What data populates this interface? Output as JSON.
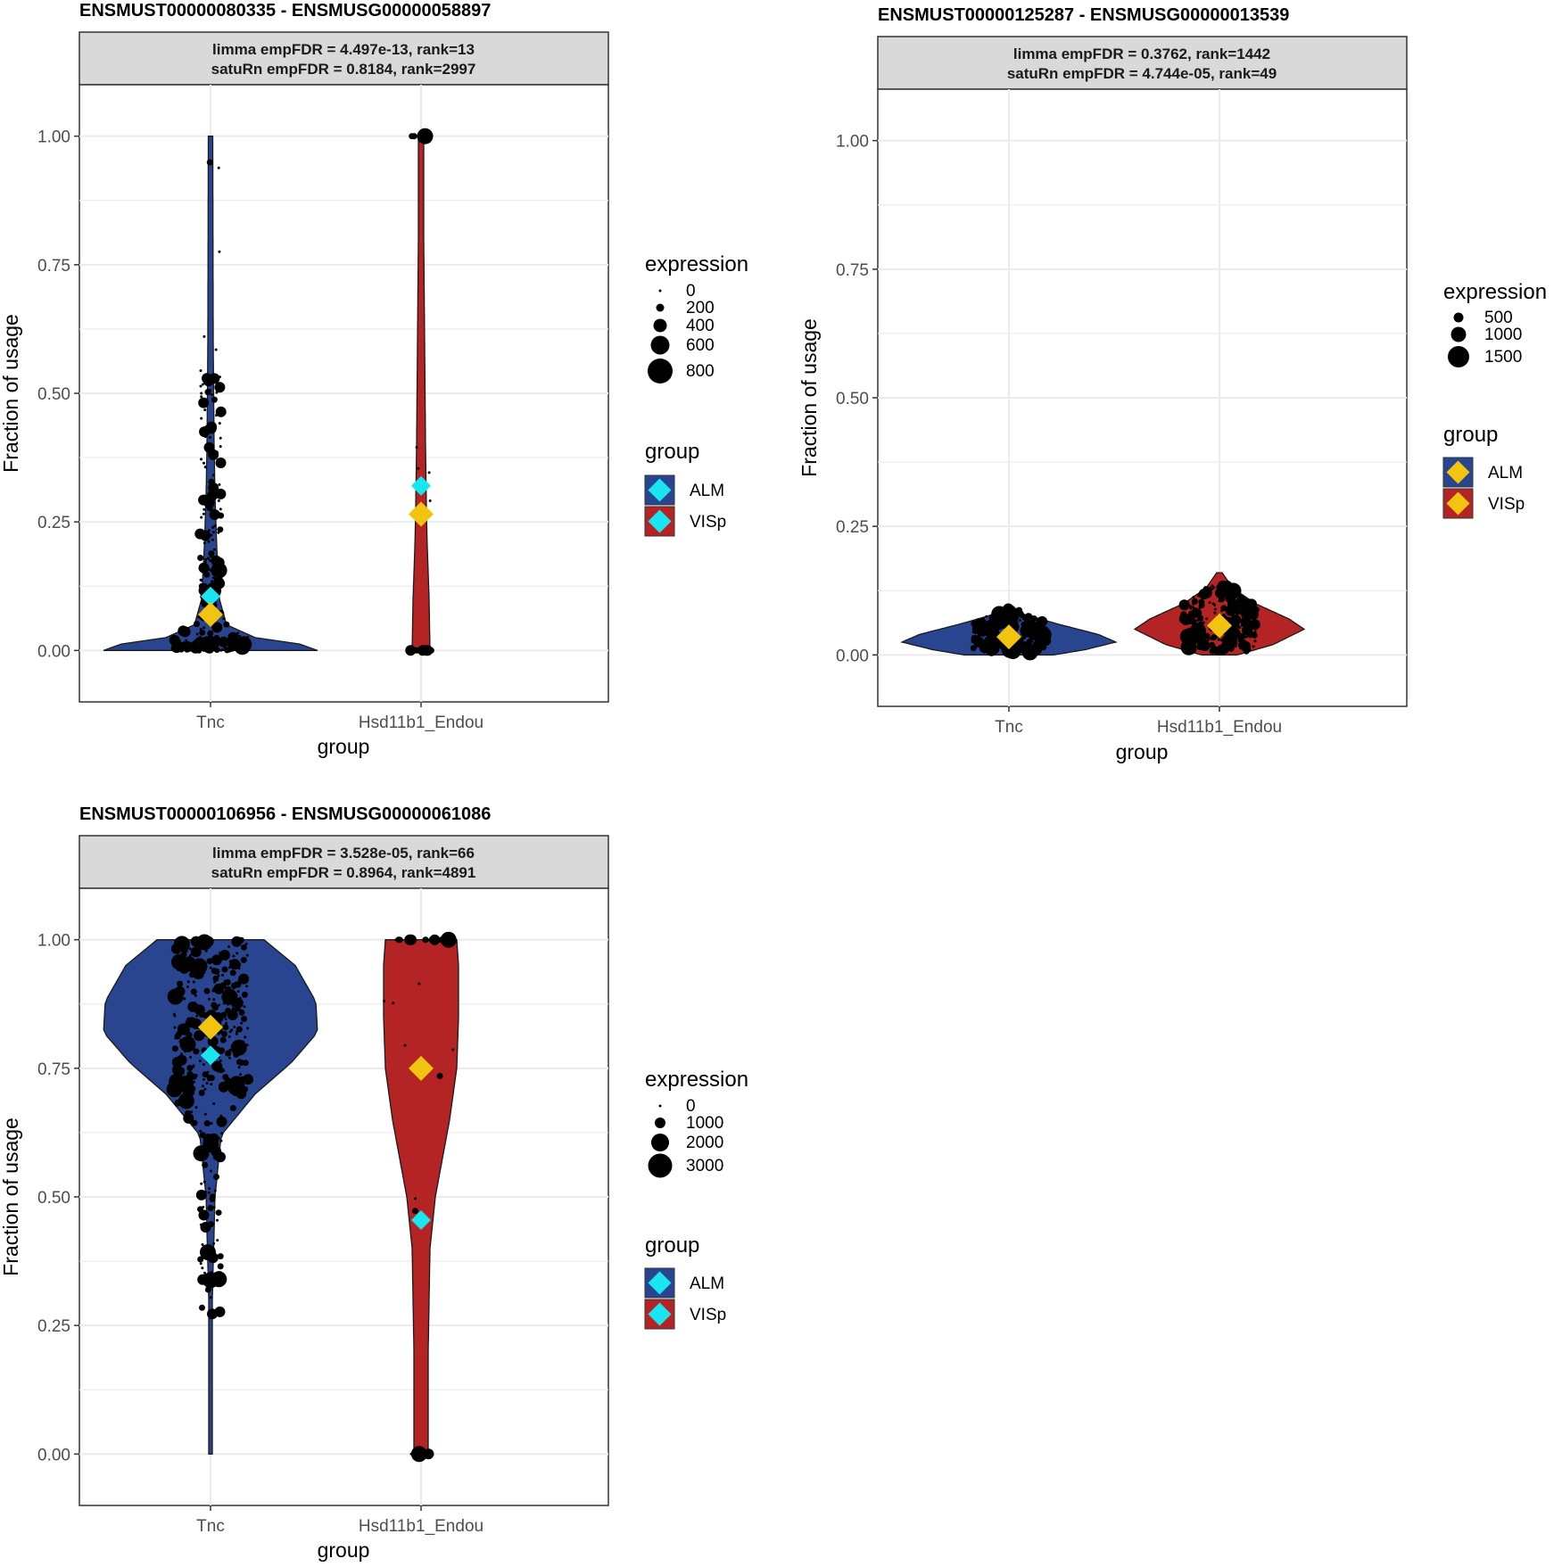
{
  "colors": {
    "ALM": "#2a4590",
    "VISp": "#b52425",
    "mean_ALM_marker": "#f2c40f",
    "mean_VISp_marker": "#19e6f0",
    "strip_bg": "#d9d9d9",
    "grid": "#ebebeb",
    "points": "#000000"
  },
  "chart_data": [
    {
      "type": "violin",
      "title": "ENSMUST00000080335  -  ENSMUSG00000058897",
      "strip": [
        "limma empFDR = 4.497e-13, rank=13",
        "satuRn empFDR = 0.8184, rank=2997"
      ],
      "xlabel": "group",
      "ylabel": "Fraction of usage",
      "categories": [
        "Tnc",
        "Hsd11b1_Endou"
      ],
      "ylim": [
        -0.1,
        1.1
      ],
      "yticks": [
        "0.00",
        "0.25",
        "0.50",
        "0.75",
        "1.00"
      ],
      "grid": true,
      "series": [
        {
          "name": "ALM",
          "category": "Tnc",
          "mean": 0.07,
          "cyan_marker": 0.105,
          "density_max_at": 0.0
        },
        {
          "name": "VISp",
          "category": "Hsd11b1_Endou",
          "mean": 0.265,
          "cyan_marker": 0.32,
          "density_max_at": 0.0
        }
      ],
      "legend": {
        "expression": {
          "title": "expression",
          "labels": [
            "0",
            "200",
            "400",
            "600",
            "800"
          ]
        },
        "group": {
          "title": "group",
          "labels": [
            "ALM",
            "VISp"
          ]
        }
      }
    },
    {
      "type": "violin",
      "title": "ENSMUST00000125287  -  ENSMUSG00000013539",
      "strip": [
        "limma empFDR = 0.3762, rank=1442",
        "satuRn empFDR = 4.744e-05, rank=49"
      ],
      "xlabel": "group",
      "ylabel": "Fraction of usage",
      "categories": [
        "Tnc",
        "Hsd11b1_Endou"
      ],
      "ylim": [
        -0.1,
        1.1
      ],
      "yticks": [
        "0.00",
        "0.25",
        "0.50",
        "0.75",
        "1.00"
      ],
      "grid": true,
      "series": [
        {
          "name": "ALM",
          "category": "Tnc",
          "mean": 0.035,
          "density_max_at": 0.03
        },
        {
          "name": "VISp",
          "category": "Hsd11b1_Endou",
          "mean": 0.057,
          "density_max_at": 0.06
        }
      ],
      "legend": {
        "expression": {
          "title": "expression",
          "labels": [
            "500",
            "1000",
            "1500"
          ]
        },
        "group": {
          "title": "group",
          "labels": [
            "ALM",
            "VISp"
          ]
        }
      }
    },
    {
      "type": "violin",
      "title": "ENSMUST00000106956  -  ENSMUSG00000061086",
      "strip": [
        "limma empFDR = 3.528e-05, rank=66",
        "satuRn empFDR = 0.8964, rank=4891"
      ],
      "xlabel": "group",
      "ylabel": "Fraction of usage",
      "categories": [
        "Tnc",
        "Hsd11b1_Endou"
      ],
      "ylim": [
        -0.1,
        1.1
      ],
      "yticks": [
        "0.00",
        "0.25",
        "0.50",
        "0.75",
        "1.00"
      ],
      "grid": true,
      "series": [
        {
          "name": "ALM",
          "category": "Tnc",
          "mean": 0.83,
          "cyan_marker": 0.775,
          "density_max_at": 0.85
        },
        {
          "name": "VISp",
          "category": "Hsd11b1_Endou",
          "mean": 0.75,
          "cyan_marker": 0.455,
          "density_max_at": 1.0
        }
      ],
      "legend": {
        "expression": {
          "title": "expression",
          "labels": [
            "0",
            "1000",
            "2000",
            "3000"
          ]
        },
        "group": {
          "title": "group",
          "labels": [
            "ALM",
            "VISp"
          ]
        }
      }
    }
  ]
}
